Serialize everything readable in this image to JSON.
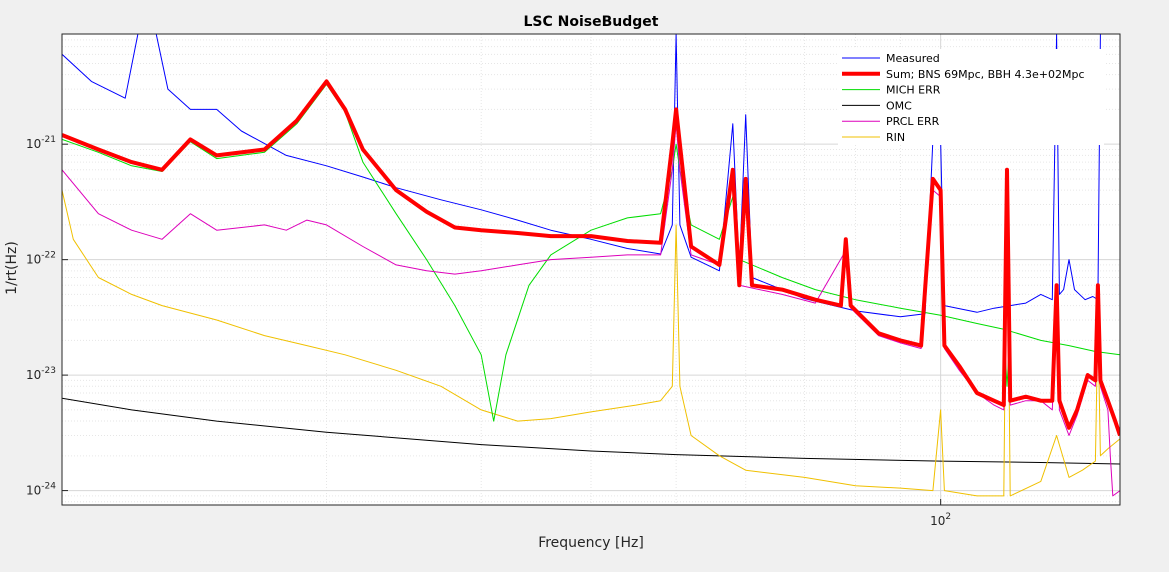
{
  "chart_data": {
    "type": "line",
    "title": "LSC NoiseBudget",
    "xlabel": "Frequency [Hz]",
    "ylabel": "1/rt(Hz)",
    "xscale": "log",
    "yscale": "log",
    "xlim": [
      10,
      160
    ],
    "ylim": [
      7.5e-25,
      9e-21
    ],
    "grid": true,
    "legend_position": "top-right",
    "x_ticks": [
      {
        "value": 100,
        "base": "10",
        "exp": "2"
      }
    ],
    "y_ticks": [
      {
        "value": 1e-24,
        "base": "10",
        "exp": "-24"
      },
      {
        "value": 1e-23,
        "base": "10",
        "exp": "-23"
      },
      {
        "value": 1e-22,
        "base": "10",
        "exp": "-22"
      },
      {
        "value": 1e-21,
        "base": "10",
        "exp": "-21"
      }
    ],
    "series": [
      {
        "name": "Measured",
        "color": "#0000ff",
        "width": 1,
        "points": [
          [
            10,
            6e-21
          ],
          [
            10.8,
            3.5e-21
          ],
          [
            11.8,
            2.5e-21
          ],
          [
            12.2,
            9e-21
          ],
          [
            12.8,
            9e-21
          ],
          [
            13.2,
            3e-21
          ],
          [
            14,
            2e-21
          ],
          [
            15,
            2e-21
          ],
          [
            16,
            1.3e-21
          ],
          [
            18,
            8e-22
          ],
          [
            20,
            6.5e-22
          ],
          [
            22,
            5.2e-22
          ],
          [
            24,
            4.2e-22
          ],
          [
            27,
            3.3e-22
          ],
          [
            30,
            2.7e-22
          ],
          [
            33,
            2.2e-22
          ],
          [
            36,
            1.8e-22
          ],
          [
            40,
            1.5e-22
          ],
          [
            44,
            1.25e-22
          ],
          [
            48,
            1.12e-22
          ],
          [
            49.5,
            2e-22
          ],
          [
            50,
            9e-21
          ],
          [
            50.5,
            2e-22
          ],
          [
            52,
            1.05e-22
          ],
          [
            56,
            8e-23
          ],
          [
            58,
            1.5e-21
          ],
          [
            59,
            8e-23
          ],
          [
            60,
            1.8e-21
          ],
          [
            61,
            7e-23
          ],
          [
            66,
            5.5e-23
          ],
          [
            70,
            4.6e-23
          ],
          [
            80,
            3.6e-23
          ],
          [
            90,
            3.2e-23
          ],
          [
            96,
            3.4e-23
          ],
          [
            98,
            1.1e-21
          ],
          [
            100,
            1.1e-21
          ],
          [
            101,
            4e-23
          ],
          [
            110,
            3.5e-23
          ],
          [
            115,
            3.8e-23
          ],
          [
            120,
            4e-23
          ],
          [
            125,
            4.2e-23
          ],
          [
            130,
            5e-23
          ],
          [
            134,
            4.5e-23
          ],
          [
            135.5,
            9e-21
          ],
          [
            136.5,
            5e-23
          ],
          [
            138,
            5.5e-23
          ],
          [
            140,
            1e-22
          ],
          [
            142,
            5.5e-23
          ],
          [
            146,
            4.5e-23
          ],
          [
            149,
            4.8e-23
          ],
          [
            151,
            4.5e-23
          ],
          [
            152,
            9e-21
          ]
        ]
      },
      {
        "name": "Sum; BNS 69Mpc, BBH 4.3e+02Mpc",
        "color": "#ff0000",
        "width": 4,
        "points": [
          [
            10,
            1.2e-21
          ],
          [
            11,
            9e-22
          ],
          [
            12,
            7e-22
          ],
          [
            13,
            6e-22
          ],
          [
            14,
            1.1e-21
          ],
          [
            15,
            8e-22
          ],
          [
            17,
            9e-22
          ],
          [
            18.5,
            1.6e-21
          ],
          [
            20,
            3.5e-21
          ],
          [
            21,
            2e-21
          ],
          [
            22,
            9e-22
          ],
          [
            24,
            4e-22
          ],
          [
            26,
            2.6e-22
          ],
          [
            28,
            1.9e-22
          ],
          [
            30,
            1.8e-22
          ],
          [
            33,
            1.7e-22
          ],
          [
            36,
            1.6e-22
          ],
          [
            40,
            1.6e-22
          ],
          [
            44,
            1.45e-22
          ],
          [
            48,
            1.4e-22
          ],
          [
            49.5,
            1e-21
          ],
          [
            50,
            2e-21
          ],
          [
            50.5,
            1e-21
          ],
          [
            52,
            1.3e-22
          ],
          [
            56,
            9e-23
          ],
          [
            58,
            6e-22
          ],
          [
            59,
            6e-23
          ],
          [
            60,
            5e-22
          ],
          [
            61,
            6e-23
          ],
          [
            66,
            5.5e-23
          ],
          [
            72,
            4.5e-23
          ],
          [
            77,
            4e-23
          ],
          [
            78,
            1.5e-22
          ],
          [
            79,
            4e-23
          ],
          [
            85,
            2.3e-23
          ],
          [
            90,
            2e-23
          ],
          [
            95,
            1.8e-23
          ],
          [
            98,
            5e-22
          ],
          [
            100,
            4e-22
          ],
          [
            101,
            1.8e-23
          ],
          [
            105,
            1.2e-23
          ],
          [
            110,
            7e-24
          ],
          [
            115,
            6e-24
          ],
          [
            118,
            5.5e-24
          ],
          [
            119,
            6e-22
          ],
          [
            120,
            6e-24
          ],
          [
            125,
            6.5e-24
          ],
          [
            130,
            6e-24
          ],
          [
            134,
            6e-24
          ],
          [
            135.5,
            6e-23
          ],
          [
            136.5,
            6e-24
          ],
          [
            140,
            3.5e-24
          ],
          [
            143,
            5e-24
          ],
          [
            147,
            1e-23
          ],
          [
            150,
            9e-24
          ],
          [
            151,
            6e-23
          ],
          [
            152,
            9e-24
          ],
          [
            155,
            6e-24
          ],
          [
            158,
            4e-24
          ],
          [
            160,
            3e-24
          ]
        ]
      },
      {
        "name": "MICH ERR",
        "color": "#00dd00",
        "width": 1,
        "points": [
          [
            10,
            1.1e-21
          ],
          [
            11,
            8.5e-22
          ],
          [
            12,
            6.5e-22
          ],
          [
            13,
            5.8e-22
          ],
          [
            14,
            1.05e-21
          ],
          [
            15,
            7.5e-22
          ],
          [
            17,
            8.5e-22
          ],
          [
            18.5,
            1.5e-21
          ],
          [
            20,
            3.3e-21
          ],
          [
            21,
            1.9e-21
          ],
          [
            22,
            7e-22
          ],
          [
            24,
            2.5e-22
          ],
          [
            26,
            1e-22
          ],
          [
            28,
            4e-23
          ],
          [
            30,
            1.5e-23
          ],
          [
            31,
            4e-24
          ],
          [
            32,
            1.5e-23
          ],
          [
            34,
            6e-23
          ],
          [
            36,
            1.1e-22
          ],
          [
            40,
            1.8e-22
          ],
          [
            44,
            2.3e-22
          ],
          [
            48,
            2.5e-22
          ],
          [
            49.5,
            6e-22
          ],
          [
            50,
            1e-21
          ],
          [
            50.5,
            6e-22
          ],
          [
            52,
            2e-22
          ],
          [
            56,
            1.5e-22
          ],
          [
            58,
            3.5e-22
          ],
          [
            59,
            1e-22
          ],
          [
            66,
            7e-23
          ],
          [
            72,
            5.5e-23
          ],
          [
            80,
            4.5e-23
          ],
          [
            90,
            3.8e-23
          ],
          [
            100,
            3.3e-23
          ],
          [
            110,
            2.8e-23
          ],
          [
            118,
            2.5e-23
          ],
          [
            119,
            8e-24
          ],
          [
            120,
            2.4e-23
          ],
          [
            130,
            2e-23
          ],
          [
            140,
            1.8e-23
          ],
          [
            150,
            1.6e-23
          ],
          [
            160,
            1.5e-23
          ]
        ]
      },
      {
        "name": "OMC",
        "color": "#000000",
        "width": 1,
        "points": [
          [
            10,
            6.3e-24
          ],
          [
            12,
            5e-24
          ],
          [
            15,
            4e-24
          ],
          [
            20,
            3.2e-24
          ],
          [
            30,
            2.5e-24
          ],
          [
            40,
            2.2e-24
          ],
          [
            50,
            2.05e-24
          ],
          [
            70,
            1.9e-24
          ],
          [
            100,
            1.8e-24
          ],
          [
            130,
            1.75e-24
          ],
          [
            160,
            1.7e-24
          ]
        ]
      },
      {
        "name": "PRCL ERR",
        "color": "#dd00bb",
        "width": 1,
        "points": [
          [
            10,
            6e-22
          ],
          [
            11,
            2.5e-22
          ],
          [
            12,
            1.8e-22
          ],
          [
            13,
            1.5e-22
          ],
          [
            14,
            2.5e-22
          ],
          [
            15,
            1.8e-22
          ],
          [
            17,
            2e-22
          ],
          [
            18,
            1.8e-22
          ],
          [
            19,
            2.2e-22
          ],
          [
            20,
            2e-22
          ],
          [
            22,
            1.3e-22
          ],
          [
            24,
            9e-23
          ],
          [
            26,
            8e-23
          ],
          [
            28,
            7.5e-23
          ],
          [
            30,
            8e-23
          ],
          [
            33,
            9e-23
          ],
          [
            36,
            1e-22
          ],
          [
            40,
            1.05e-22
          ],
          [
            44,
            1.1e-22
          ],
          [
            48,
            1.1e-22
          ],
          [
            49.5,
            6e-22
          ],
          [
            50,
            1.5e-21
          ],
          [
            50.5,
            6e-22
          ],
          [
            52,
            1.1e-22
          ],
          [
            56,
            9e-23
          ],
          [
            58,
            5e-22
          ],
          [
            59,
            6e-23
          ],
          [
            66,
            5e-23
          ],
          [
            72,
            4.2e-23
          ],
          [
            78,
            1.2e-22
          ],
          [
            79,
            3.8e-23
          ],
          [
            85,
            2.2e-23
          ],
          [
            90,
            1.9e-23
          ],
          [
            95,
            1.7e-23
          ],
          [
            98,
            4e-22
          ],
          [
            100,
            3.5e-22
          ],
          [
            101,
            1.7e-23
          ],
          [
            105,
            1.1e-23
          ],
          [
            110,
            7e-24
          ],
          [
            115,
            5.5e-24
          ],
          [
            118,
            5e-24
          ],
          [
            119,
            5e-22
          ],
          [
            120,
            5.5e-24
          ],
          [
            125,
            6e-24
          ],
          [
            130,
            6e-24
          ],
          [
            134,
            5e-24
          ],
          [
            135.5,
            5e-23
          ],
          [
            136.5,
            5e-24
          ],
          [
            140,
            3e-24
          ],
          [
            143,
            4.5e-24
          ],
          [
            147,
            9e-24
          ],
          [
            150,
            8e-24
          ],
          [
            151,
            5e-23
          ],
          [
            152,
            8e-24
          ],
          [
            155,
            5e-24
          ],
          [
            156,
            2e-24
          ],
          [
            157,
            9e-25
          ],
          [
            160,
            1e-24
          ]
        ]
      },
      {
        "name": "RIN",
        "color": "#f0c000",
        "width": 1,
        "points": [
          [
            10,
            4e-22
          ],
          [
            10.3,
            1.5e-22
          ],
          [
            11,
            7e-23
          ],
          [
            12,
            5e-23
          ],
          [
            13,
            4e-23
          ],
          [
            15,
            3e-23
          ],
          [
            17,
            2.2e-23
          ],
          [
            19,
            1.8e-23
          ],
          [
            21,
            1.5e-23
          ],
          [
            24,
            1.1e-23
          ],
          [
            27,
            8e-24
          ],
          [
            30,
            5e-24
          ],
          [
            33,
            4e-24
          ],
          [
            36,
            4.2e-24
          ],
          [
            40,
            4.8e-24
          ],
          [
            45,
            5.5e-24
          ],
          [
            48,
            6e-24
          ],
          [
            49.5,
            8e-24
          ],
          [
            50,
            2e-22
          ],
          [
            50.5,
            8e-24
          ],
          [
            52,
            3e-24
          ],
          [
            56,
            2e-24
          ],
          [
            60,
            1.5e-24
          ],
          [
            70,
            1.3e-24
          ],
          [
            80,
            1.1e-24
          ],
          [
            90,
            1.05e-24
          ],
          [
            98,
            1e-24
          ],
          [
            100,
            5e-24
          ],
          [
            101,
            1e-24
          ],
          [
            110,
            9e-25
          ],
          [
            118,
            9e-25
          ],
          [
            119,
            6e-22
          ],
          [
            120,
            9e-25
          ],
          [
            130,
            1.2e-24
          ],
          [
            135.5,
            3e-24
          ],
          [
            140,
            1.3e-24
          ],
          [
            145,
            1.5e-24
          ],
          [
            150,
            1.8e-24
          ],
          [
            151,
            3e-23
          ],
          [
            152,
            2e-24
          ],
          [
            155,
            2.3e-24
          ],
          [
            160,
            2.8e-24
          ]
        ]
      }
    ]
  }
}
